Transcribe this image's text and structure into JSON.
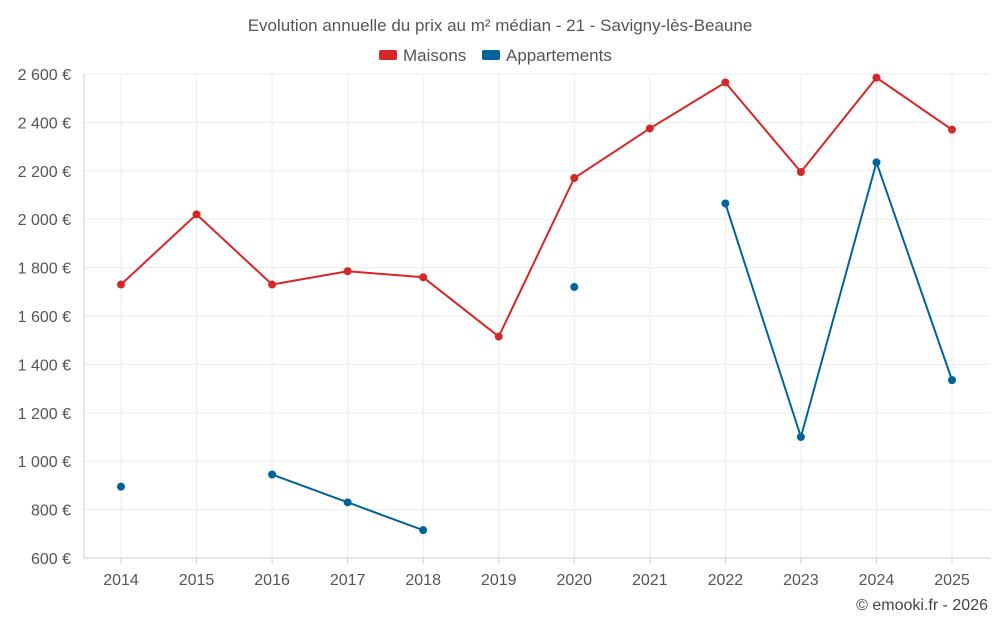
{
  "chart_data": {
    "type": "line",
    "title": "Evolution annuelle du prix au m² médian - 21 - Savigny-lès-Beaune",
    "categories": [
      "2014",
      "2015",
      "2016",
      "2017",
      "2018",
      "2019",
      "2020",
      "2021",
      "2022",
      "2023",
      "2024",
      "2025"
    ],
    "ylim": [
      600,
      2600
    ],
    "yticks": [
      600,
      800,
      1000,
      1200,
      1400,
      1600,
      1800,
      2000,
      2200,
      2400,
      2600
    ],
    "ytick_labels": [
      "600 €",
      "800 €",
      "1 000 €",
      "1 200 €",
      "1 400 €",
      "1 600 €",
      "1 800 €",
      "2 000 €",
      "2 200 €",
      "2 400 €",
      "2 600 €"
    ],
    "grid": true,
    "legend_position": "top-center",
    "series": [
      {
        "name": "Maisons",
        "color": "#d62728",
        "values": [
          1730,
          2020,
          1730,
          1785,
          1760,
          1515,
          2170,
          2375,
          2565,
          2195,
          2585,
          2370
        ]
      },
      {
        "name": "Appartements",
        "color": "#00639a",
        "values": [
          895,
          null,
          945,
          830,
          715,
          null,
          1720,
          null,
          2065,
          1100,
          2235,
          1335
        ]
      }
    ]
  },
  "credit": "© emooki.fr - 2026"
}
